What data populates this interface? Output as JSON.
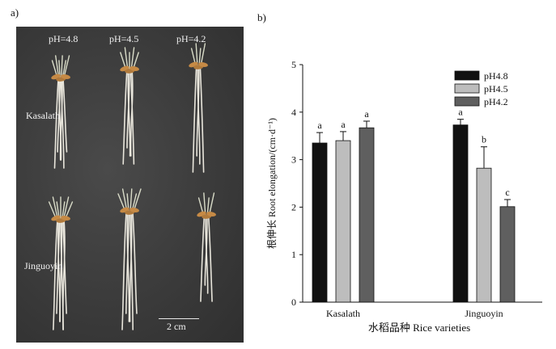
{
  "panel_a": {
    "label": "a)",
    "ph_labels": [
      "pH=4.8",
      "pH=4.5",
      "pH=4.2"
    ],
    "row_labels": [
      "Kasalath",
      "Jinguoyin"
    ],
    "scale_bar": "2 cm"
  },
  "panel_b": {
    "label": "b)"
  },
  "chart_data": {
    "type": "bar",
    "ylabel": "根伸长 Root elongation/(cm·d⁻¹)",
    "xlabel": "水稻品种 Rice varieties",
    "categories": [
      "Kasalath",
      "Jinguoyin"
    ],
    "ylim": [
      0,
      5
    ],
    "yticks": [
      "0",
      "1",
      "2",
      "3",
      "4",
      "5"
    ],
    "legend_position": "top-right",
    "series": [
      {
        "name": "pH4.8",
        "color": "#111111",
        "values": [
          3.35,
          3.73
        ],
        "errors": [
          0.22,
          0.12
        ],
        "letters": [
          "a",
          "a"
        ]
      },
      {
        "name": "pH4.5",
        "color": "#bdbdbd",
        "values": [
          3.4,
          2.82
        ],
        "errors": [
          0.19,
          0.45
        ],
        "letters": [
          "a",
          "b"
        ]
      },
      {
        "name": "pH4.2",
        "color": "#5f5f5f",
        "values": [
          3.67,
          2.01
        ],
        "errors": [
          0.14,
          0.15
        ],
        "letters": [
          "a",
          "c"
        ]
      }
    ]
  }
}
